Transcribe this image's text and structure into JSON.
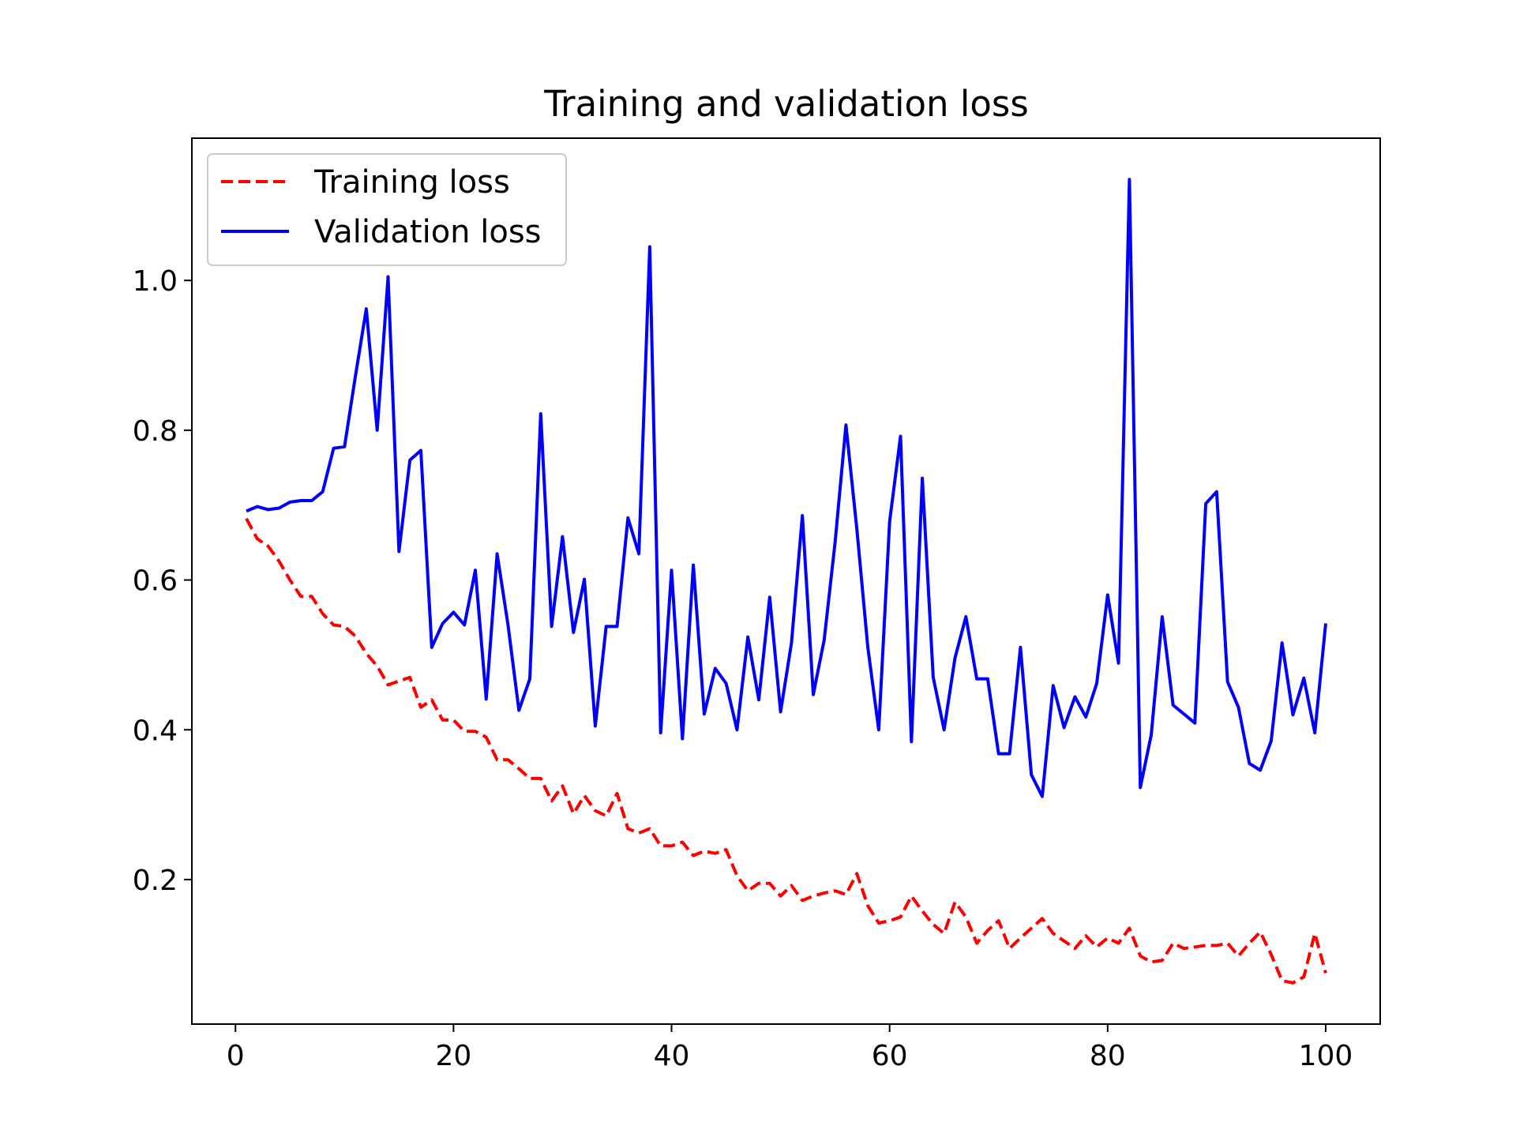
{
  "chart_data": {
    "type": "line",
    "title": "Training and validation loss",
    "xlabel": "",
    "ylabel": "",
    "xlim": [
      -4,
      105
    ],
    "ylim": [
      0.007,
      1.19
    ],
    "xticks": [
      0,
      20,
      40,
      60,
      80,
      100
    ],
    "xtick_labels": [
      "0",
      "20",
      "40",
      "60",
      "80",
      "100"
    ],
    "yticks": [
      0.2,
      0.4,
      0.6,
      0.8,
      1.0
    ],
    "ytick_labels": [
      "0.2",
      "0.4",
      "0.6",
      "0.8",
      "1.0"
    ],
    "grid": false,
    "legend_position": "top-left",
    "x": [
      1,
      2,
      3,
      4,
      5,
      6,
      7,
      8,
      9,
      10,
      11,
      12,
      13,
      14,
      15,
      16,
      17,
      18,
      19,
      20,
      21,
      22,
      23,
      24,
      25,
      26,
      27,
      28,
      29,
      30,
      31,
      32,
      33,
      34,
      35,
      36,
      37,
      38,
      39,
      40,
      41,
      42,
      43,
      44,
      45,
      46,
      47,
      48,
      49,
      50,
      51,
      52,
      53,
      54,
      55,
      56,
      57,
      58,
      59,
      60,
      61,
      62,
      63,
      64,
      65,
      66,
      67,
      68,
      69,
      70,
      71,
      72,
      73,
      74,
      75,
      76,
      77,
      78,
      79,
      80,
      81,
      82,
      83,
      84,
      85,
      86,
      87,
      88,
      89,
      90,
      91,
      92,
      93,
      94,
      95,
      96,
      97,
      98,
      99,
      100
    ],
    "series": [
      {
        "name": "Training loss",
        "color": "#ff0000",
        "style": "dashed",
        "values": [
          0.682,
          0.655,
          0.645,
          0.625,
          0.6,
          0.578,
          0.578,
          0.555,
          0.54,
          0.538,
          0.525,
          0.502,
          0.485,
          0.46,
          0.465,
          0.47,
          0.43,
          0.44,
          0.413,
          0.413,
          0.398,
          0.398,
          0.39,
          0.36,
          0.36,
          0.348,
          0.335,
          0.335,
          0.305,
          0.325,
          0.288,
          0.312,
          0.292,
          0.285,
          0.315,
          0.268,
          0.262,
          0.268,
          0.245,
          0.245,
          0.25,
          0.232,
          0.238,
          0.235,
          0.24,
          0.205,
          0.185,
          0.195,
          0.195,
          0.178,
          0.192,
          0.172,
          0.178,
          0.182,
          0.185,
          0.18,
          0.208,
          0.165,
          0.142,
          0.145,
          0.15,
          0.178,
          0.158,
          0.14,
          0.128,
          0.17,
          0.15,
          0.115,
          0.132,
          0.145,
          0.108,
          0.122,
          0.135,
          0.148,
          0.128,
          0.118,
          0.108,
          0.125,
          0.11,
          0.122,
          0.115,
          0.135,
          0.098,
          0.09,
          0.092,
          0.115,
          0.108,
          0.11,
          0.112,
          0.112,
          0.115,
          0.098,
          0.115,
          0.13,
          0.1,
          0.065,
          0.062,
          0.07,
          0.128,
          0.075
        ]
      },
      {
        "name": "Validation loss",
        "color": "#0000ff",
        "style": "solid",
        "values": [
          0.692,
          0.698,
          0.694,
          0.696,
          0.704,
          0.706,
          0.706,
          0.718,
          0.776,
          0.778,
          0.872,
          0.962,
          0.8,
          1.005,
          0.638,
          0.76,
          0.773,
          0.51,
          0.542,
          0.557,
          0.54,
          0.613,
          0.441,
          0.635,
          0.54,
          0.426,
          0.468,
          0.822,
          0.538,
          0.658,
          0.53,
          0.601,
          0.405,
          0.538,
          0.538,
          0.683,
          0.635,
          1.045,
          0.396,
          0.613,
          0.388,
          0.62,
          0.421,
          0.482,
          0.462,
          0.4,
          0.524,
          0.44,
          0.577,
          0.424,
          0.516,
          0.686,
          0.447,
          0.52,
          0.65,
          0.807,
          0.668,
          0.51,
          0.4,
          0.678,
          0.792,
          0.384,
          0.736,
          0.47,
          0.4,
          0.496,
          0.551,
          0.468,
          0.468,
          0.368,
          0.368,
          0.51,
          0.34,
          0.311,
          0.459,
          0.403,
          0.444,
          0.417,
          0.462,
          0.58,
          0.489,
          1.135,
          0.323,
          0.393,
          0.551,
          0.433,
          0.421,
          0.409,
          0.702,
          0.718,
          0.464,
          0.43,
          0.355,
          0.346,
          0.385,
          0.516,
          0.42,
          0.469,
          0.396,
          0.542
        ]
      }
    ]
  }
}
